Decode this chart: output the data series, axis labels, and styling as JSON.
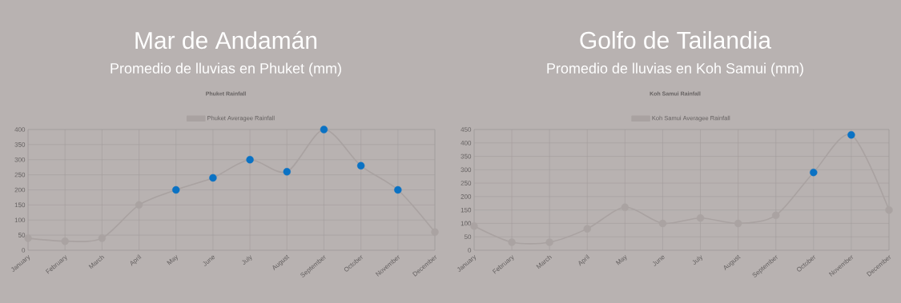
{
  "chart_data": [
    {
      "type": "line",
      "title": "Mar de Andamán",
      "subtitle": "Promedio de lluvias en Phuket (mm)",
      "annotations": [
        "Phuket Rainfall"
      ],
      "categories": [
        "January",
        "February",
        "March",
        "April",
        "May",
        "June",
        "July",
        "August",
        "September",
        "October",
        "November",
        "December"
      ],
      "series": [
        {
          "name": "Phuket Averagee Rainfall",
          "color": "#a9a2a1",
          "values": [
            40,
            30,
            40,
            150,
            200,
            240,
            300,
            260,
            400,
            280,
            200,
            60
          ],
          "colors": [
            "#aaa3a2",
            "#aaa3a2",
            "#aaa3a2",
            "#aaa3a2",
            "#0a72c4",
            "#0a72c4",
            "#0a72c4",
            "#0a72c4",
            "#0a72c4",
            "#0a72c4",
            "#0a72c4",
            "#aaa3a2"
          ]
        }
      ],
      "ylim": [
        0,
        400
      ],
      "yticks": [
        0,
        50,
        100,
        150,
        200,
        250,
        300,
        350,
        400
      ],
      "grid": true,
      "legend": "top",
      "marker": "circle",
      "line_style": "solid"
    },
    {
      "type": "line",
      "title": "Golfo de Tailandia",
      "subtitle": "Promedio de lluvias en Koh Samui (mm)",
      "annotations": [
        "Koh Samui Rainfall"
      ],
      "categories": [
        "January",
        "February",
        "March",
        "April",
        "May",
        "June",
        "July",
        "August",
        "September",
        "October",
        "November",
        "December"
      ],
      "series": [
        {
          "name": "Koh Samui Averagee Rainfall",
          "color": "#a9a2a1",
          "values": [
            90,
            30,
            30,
            80,
            160,
            100,
            120,
            100,
            130,
            290,
            430,
            150
          ],
          "colors": [
            "#aaa3a2",
            "#aaa3a2",
            "#aaa3a2",
            "#aaa3a2",
            "#aaa3a2",
            "#aaa3a2",
            "#aaa3a2",
            "#aaa3a2",
            "#aaa3a2",
            "#0a72c4",
            "#0a72c4",
            "#aaa3a2"
          ]
        }
      ],
      "ylim": [
        0,
        450
      ],
      "yticks": [
        0,
        50,
        100,
        150,
        200,
        250,
        300,
        350,
        400,
        450
      ],
      "grid": true,
      "legend": "top",
      "marker": "circle",
      "line_style": "solid"
    }
  ]
}
